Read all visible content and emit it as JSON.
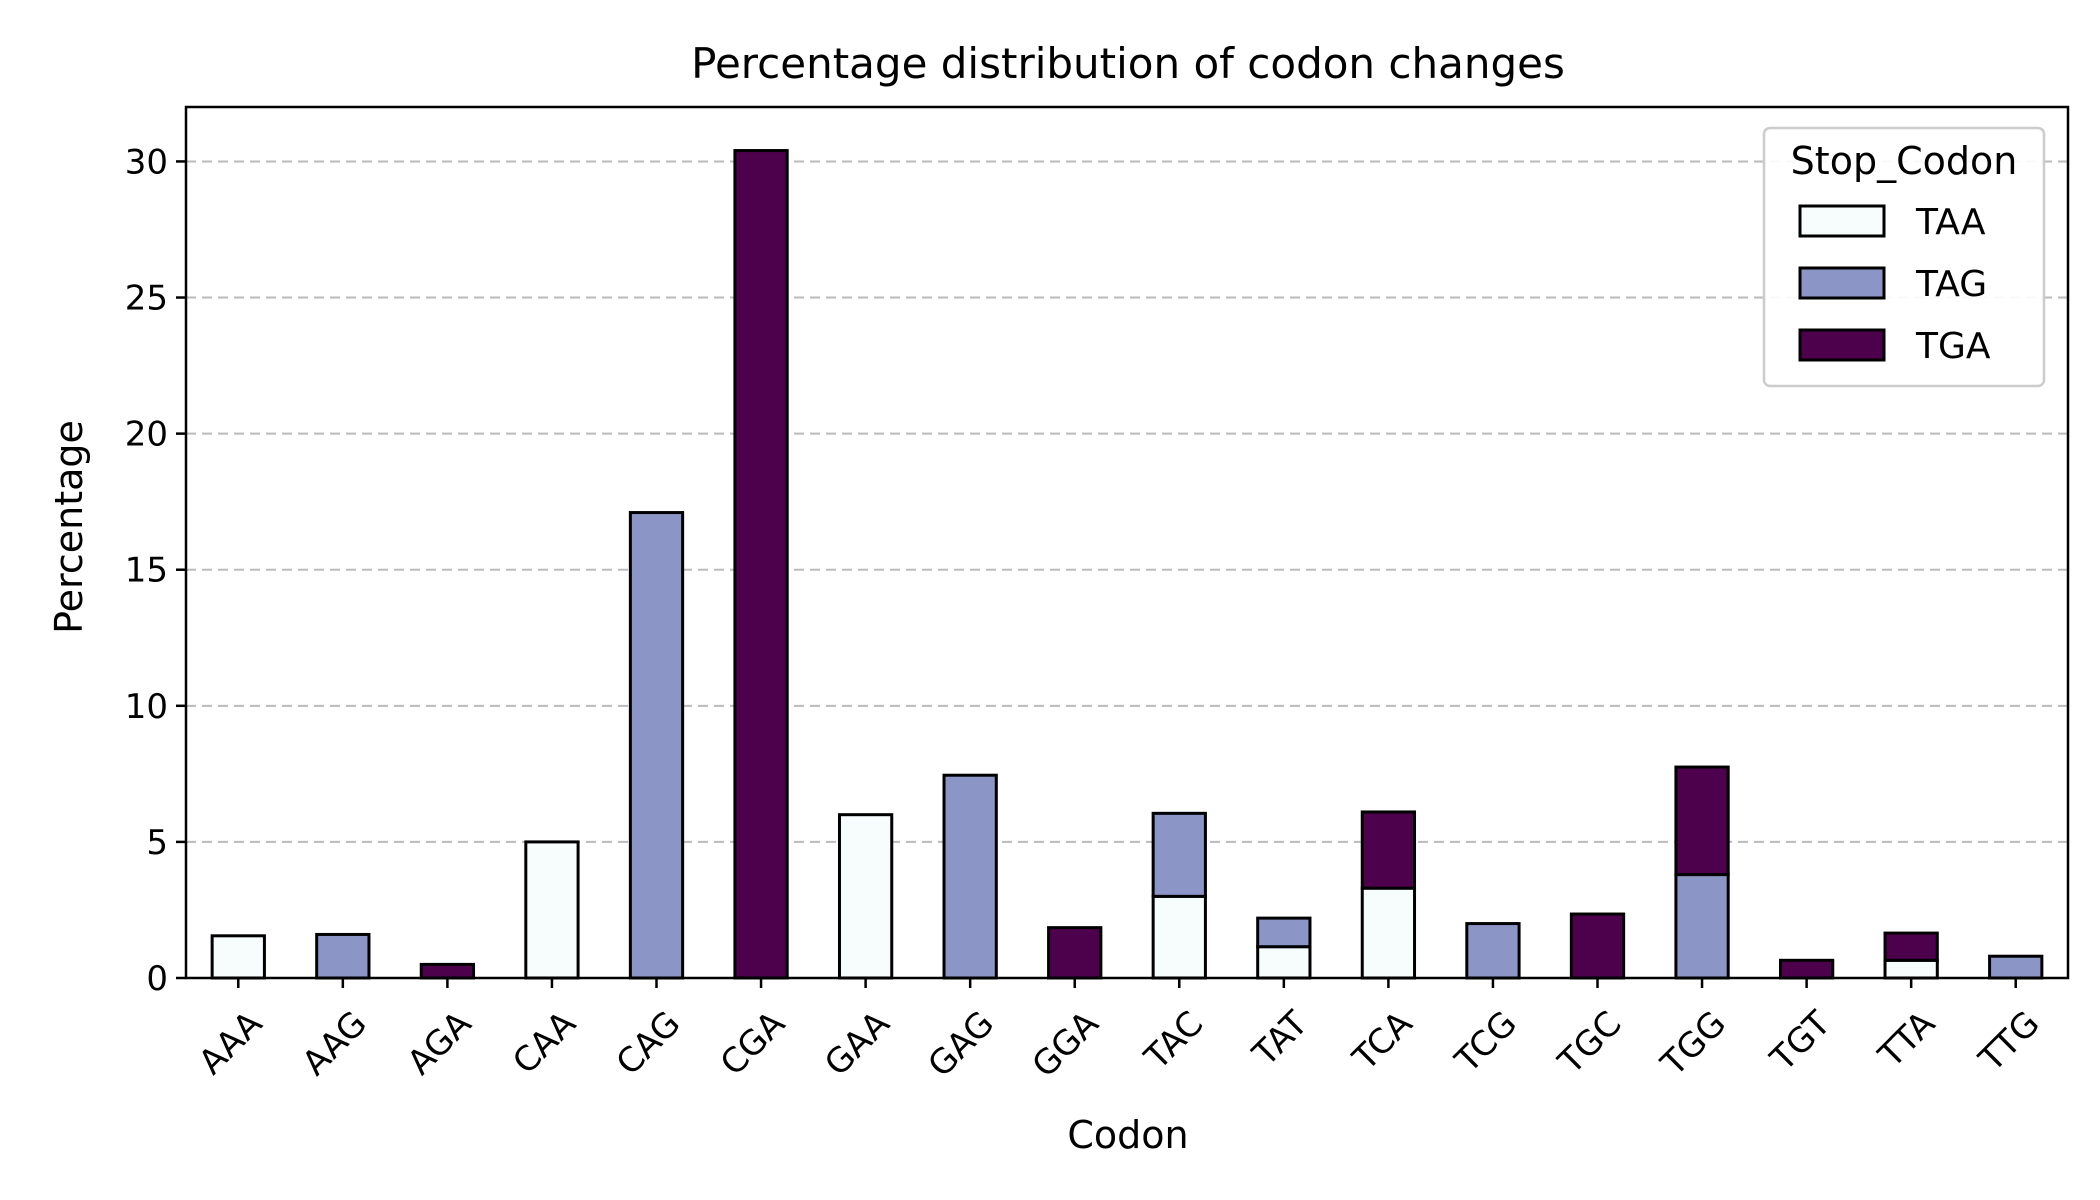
{
  "chart_data": {
    "type": "bar",
    "stacked": true,
    "title": "Percentage distribution of codon changes",
    "xlabel": "Codon",
    "ylabel": "Percentage",
    "ylim": [
      0,
      32
    ],
    "yticks": [
      0,
      5,
      10,
      15,
      20,
      25,
      30
    ],
    "grid": "y-dashed",
    "legend": {
      "title": "Stop_Codon",
      "placement": "top-right"
    },
    "categories": [
      "AAA",
      "AAG",
      "AGA",
      "CAA",
      "CAG",
      "CGA",
      "GAA",
      "GAG",
      "GGA",
      "TAC",
      "TAT",
      "TCA",
      "TCG",
      "TGC",
      "TGG",
      "TGT",
      "TTA",
      "TTG"
    ],
    "series": [
      {
        "name": "TAA",
        "color": "#f7fcfd",
        "values": [
          1.55,
          0,
          0,
          5.0,
          0,
          0,
          6.0,
          0,
          0,
          3.0,
          1.15,
          3.3,
          0,
          0,
          0,
          0,
          0.65,
          0
        ]
      },
      {
        "name": "TAG",
        "color": "#8c96c6",
        "values": [
          0,
          1.6,
          0,
          0,
          17.1,
          0,
          0,
          7.45,
          0,
          3.05,
          1.05,
          0,
          2.0,
          0,
          3.8,
          0,
          0,
          0.8
        ]
      },
      {
        "name": "TGA",
        "color": "#4d004b",
        "values": [
          0,
          0,
          0.5,
          0,
          0,
          30.4,
          0,
          0,
          1.85,
          0,
          0,
          2.8,
          0,
          2.35,
          3.95,
          0.65,
          1.0,
          0
        ]
      }
    ]
  }
}
